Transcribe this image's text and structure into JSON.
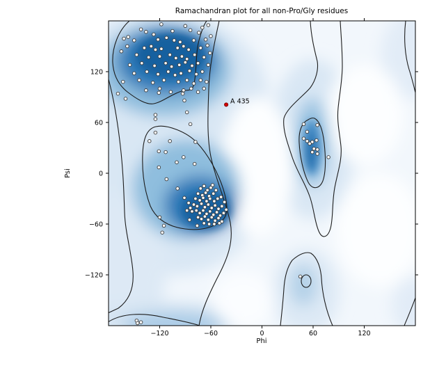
{
  "figure": {
    "title": "Ramachandran plot for all non-Pro/Gly residues",
    "xlabel": "Phi",
    "ylabel": "Psi"
  },
  "colors": {
    "figure_bg": "#ffffff",
    "plot_bg": "#f2f7fc",
    "density_wash": "#d9e7f4",
    "density_light": "#a9cbe6",
    "density_mid": "#5794c9",
    "density_dark": "#2e79b8",
    "density_core": "#17619f",
    "white_patch": "#fdfeff",
    "contour_line": "#1c1c1c",
    "dot_fill": "#fafafa",
    "dot_stroke": "#3c3c3c",
    "marker_red": "#d40000",
    "axis_color": "#000000"
  },
  "chart_data": {
    "type": "scatter",
    "title": "Ramachandran plot for all non-Pro/Gly residues",
    "xlabel": "Phi",
    "ylabel": "Psi",
    "xlim": [
      -180,
      180
    ],
    "ylim": [
      -180,
      180
    ],
    "x_ticks": [
      -120,
      -60,
      0,
      60,
      120
    ],
    "y_ticks": [
      120,
      60,
      0,
      -60,
      -120
    ],
    "grid": false,
    "legend": "none",
    "series": [
      {
        "name": "residues",
        "marker": "white-circle",
        "points": [
          [
            -118,
            176
          ],
          [
            -90,
            174
          ],
          [
            -142,
            170
          ],
          [
            -136,
            167
          ],
          [
            -127,
            164
          ],
          [
            -105,
            168
          ],
          [
            -84,
            169
          ],
          [
            -74,
            166
          ],
          [
            -70,
            172
          ],
          [
            -63,
            175
          ],
          [
            -162,
            159
          ],
          [
            -157,
            161
          ],
          [
            -150,
            157
          ],
          [
            -122,
            158
          ],
          [
            -112,
            160
          ],
          [
            -103,
            157
          ],
          [
            -96,
            155
          ],
          [
            -80,
            157
          ],
          [
            -66,
            158
          ],
          [
            -60,
            162
          ],
          [
            -158,
            150
          ],
          [
            -138,
            148
          ],
          [
            -130,
            150
          ],
          [
            -125,
            146
          ],
          [
            -118,
            147
          ],
          [
            -99,
            148
          ],
          [
            -92,
            150
          ],
          [
            -86,
            146
          ],
          [
            -72,
            148
          ],
          [
            -64,
            151
          ],
          [
            -147,
            140
          ],
          [
            -133,
            137
          ],
          [
            -120,
            138
          ],
          [
            -108,
            140
          ],
          [
            -101,
            136
          ],
          [
            -94,
            138
          ],
          [
            -88,
            135
          ],
          [
            -79,
            140
          ],
          [
            -68,
            137
          ],
          [
            -61,
            142
          ],
          [
            -165,
            144
          ],
          [
            -155,
            128
          ],
          [
            -141,
            130
          ],
          [
            -126,
            127
          ],
          [
            -113,
            130
          ],
          [
            -106,
            126
          ],
          [
            -97,
            128
          ],
          [
            -90,
            131
          ],
          [
            -82,
            127
          ],
          [
            -75,
            130
          ],
          [
            -63,
            128
          ],
          [
            -150,
            118
          ],
          [
            -135,
            120
          ],
          [
            -122,
            117
          ],
          [
            -110,
            120
          ],
          [
            -102,
            116
          ],
          [
            -95,
            118
          ],
          [
            -85,
            121
          ],
          [
            -77,
            117
          ],
          [
            -70,
            120
          ],
          [
            -163,
            108
          ],
          [
            -144,
            110
          ],
          [
            -128,
            107
          ],
          [
            -115,
            110
          ],
          [
            -98,
            108
          ],
          [
            -88,
            110
          ],
          [
            -80,
            106
          ],
          [
            -72,
            110
          ],
          [
            -65,
            108
          ],
          [
            -136,
            98
          ],
          [
            -120,
            100
          ],
          [
            -107,
            96
          ],
          [
            -92,
            98
          ],
          [
            -83,
            100
          ],
          [
            -75,
            96
          ],
          [
            -68,
            100
          ],
          [
            -169,
            94
          ],
          [
            -121,
            95
          ],
          [
            -93,
            94
          ],
          [
            -91,
            86
          ],
          [
            -88,
            72
          ],
          [
            -125,
            69
          ],
          [
            -125,
            64
          ],
          [
            -84,
            58
          ],
          [
            -160,
            88
          ],
          [
            -132,
            38
          ],
          [
            -125,
            48
          ],
          [
            -108,
            38
          ],
          [
            -78,
            37
          ],
          [
            -121,
            26
          ],
          [
            -113,
            25
          ],
          [
            -100,
            13
          ],
          [
            -92,
            19
          ],
          [
            -79,
            11
          ],
          [
            -121,
            7
          ],
          [
            -112,
            -7
          ],
          [
            -99,
            -18
          ],
          [
            -91,
            -29
          ],
          [
            -120,
            -52
          ],
          [
            -115,
            -62
          ],
          [
            -117,
            -70
          ],
          [
            -85,
            -55
          ],
          [
            -76,
            -62
          ],
          [
            -72,
            -18
          ],
          [
            -68,
            -15
          ],
          [
            -64,
            -20
          ],
          [
            -60,
            -17
          ],
          [
            -75,
            -24
          ],
          [
            -70,
            -26
          ],
          [
            -66,
            -23
          ],
          [
            -62,
            -27
          ],
          [
            -57,
            -24
          ],
          [
            -78,
            -30
          ],
          [
            -73,
            -32
          ],
          [
            -69,
            -29
          ],
          [
            -65,
            -33
          ],
          [
            -61,
            -30
          ],
          [
            -56,
            -33
          ],
          [
            -52,
            -30
          ],
          [
            -80,
            -37
          ],
          [
            -76,
            -39
          ],
          [
            -71,
            -36
          ],
          [
            -67,
            -40
          ],
          [
            -63,
            -37
          ],
          [
            -59,
            -41
          ],
          [
            -55,
            -38
          ],
          [
            -51,
            -42
          ],
          [
            -47,
            -39
          ],
          [
            -82,
            -45
          ],
          [
            -77,
            -44
          ],
          [
            -73,
            -47
          ],
          [
            -69,
            -44
          ],
          [
            -65,
            -48
          ],
          [
            -61,
            -45
          ],
          [
            -57,
            -49
          ],
          [
            -53,
            -46
          ],
          [
            -49,
            -50
          ],
          [
            -45,
            -47
          ],
          [
            -75,
            -52
          ],
          [
            -71,
            -54
          ],
          [
            -67,
            -51
          ],
          [
            -63,
            -55
          ],
          [
            -59,
            -52
          ],
          [
            -55,
            -56
          ],
          [
            -51,
            -53
          ],
          [
            -47,
            -57
          ],
          [
            -68,
            -59
          ],
          [
            -62,
            -60
          ],
          [
            -56,
            -60
          ],
          [
            -50,
            -59
          ],
          [
            -84,
            -41
          ],
          [
            -86,
            -35
          ],
          [
            -88,
            -44
          ],
          [
            -58,
            -14
          ],
          [
            -54,
            -20
          ],
          [
            -48,
            -28
          ],
          [
            -44,
            -34
          ],
          [
            -42,
            -43
          ],
          [
            49,
            58
          ],
          [
            65,
            57
          ],
          [
            53,
            49
          ],
          [
            49,
            41
          ],
          [
            53,
            38
          ],
          [
            59,
            37
          ],
          [
            64,
            39
          ],
          [
            56,
            35
          ],
          [
            61,
            29
          ],
          [
            65,
            28
          ],
          [
            59,
            25
          ],
          [
            65,
            23
          ],
          [
            78,
            19
          ],
          [
            45,
            -122
          ],
          [
            -147,
            -174
          ],
          [
            -146,
            -177
          ],
          [
            -142,
            -176
          ]
        ]
      },
      {
        "name": "highlighted-residue",
        "marker": "red-circle",
        "label": "A 435",
        "points": [
          [
            -42,
            81
          ]
        ]
      }
    ]
  },
  "annotation": {
    "label": "A 435",
    "phi": -42,
    "psi": 81
  }
}
